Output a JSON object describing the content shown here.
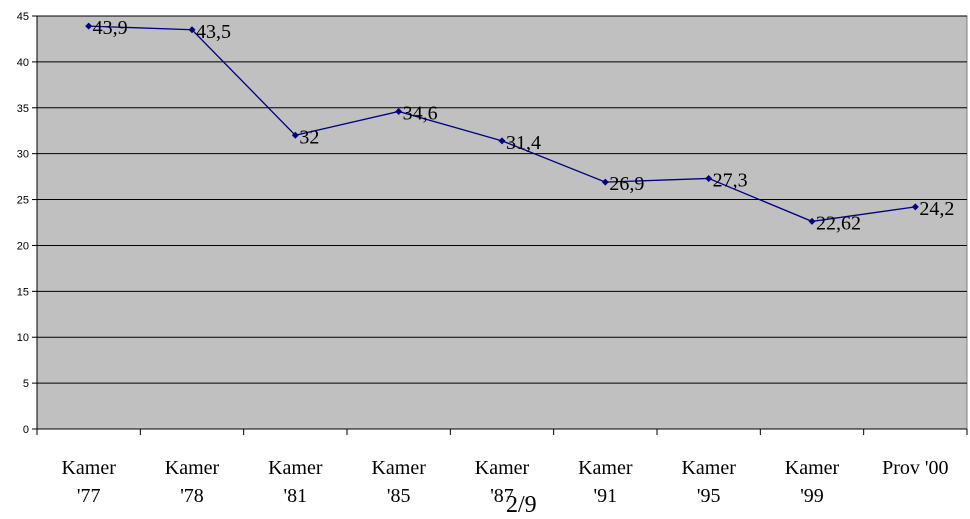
{
  "chart_data": {
    "type": "line",
    "categories": [
      [
        "Kamer",
        "'77"
      ],
      [
        "Kamer",
        "'78"
      ],
      [
        "Kamer",
        "'81"
      ],
      [
        "Kamer",
        "'85"
      ],
      [
        "Kamer",
        "'87"
      ],
      [
        "Kamer",
        "'91"
      ],
      [
        "Kamer",
        "'95"
      ],
      [
        "Kamer",
        "'99"
      ],
      [
        "Prov '00"
      ]
    ],
    "values": [
      43.9,
      43.5,
      32,
      34.6,
      31.4,
      26.9,
      27.3,
      22.62,
      24.2
    ],
    "data_labels": [
      "43,9",
      "43,5",
      "32",
      "34,6",
      "31,4",
      "26,9",
      "27,3",
      "22,62",
      "24,2"
    ],
    "y_ticks": [
      "0",
      "5",
      "10",
      "15",
      "20",
      "25",
      "30",
      "35",
      "40",
      "45"
    ],
    "ylim": [
      0,
      45
    ],
    "grid": true,
    "title": "",
    "xlabel": "",
    "ylabel": "",
    "colors": {
      "plot_bg": "#c0c0c0",
      "line": "#000080",
      "marker": "#000080",
      "grid": "#000000"
    }
  },
  "page": {
    "number": "2/9"
  }
}
